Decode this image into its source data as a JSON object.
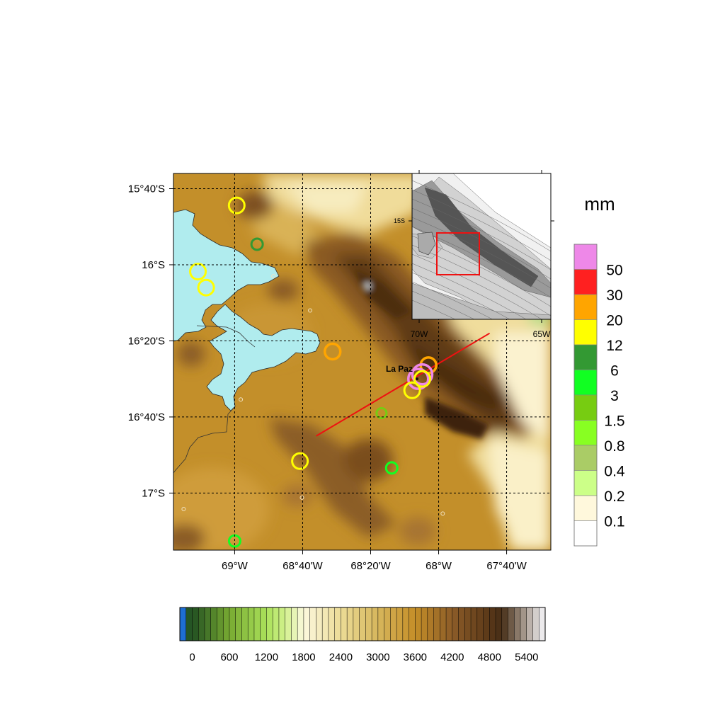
{
  "map": {
    "lat_labels": [
      "15°40'S",
      "16°S",
      "16°20'S",
      "16°40'S",
      "17°S"
    ],
    "lon_labels": [
      "69°W",
      "68°40'W",
      "68°20'W",
      "68°W",
      "67°40'W"
    ],
    "city": {
      "name": "La Paz",
      "lon": -68.12,
      "lat": -16.5
    },
    "transect": {
      "start": {
        "lon": -68.6,
        "lat": -16.75
      },
      "end": {
        "lon": -67.75,
        "lat": -16.3
      },
      "color": "#ee1111"
    },
    "lake_color": "#b0ecee",
    "extent": {
      "lon_min": -69.3,
      "lon_max": -67.45,
      "lat_min": -17.25,
      "lat_max": -15.6
    }
  },
  "stations": [
    {
      "lon": -68.99,
      "lat": -15.74,
      "mm": 12
    },
    {
      "lon": -68.89,
      "lat": -15.91,
      "mm": 6
    },
    {
      "lon": -69.18,
      "lat": -16.03,
      "mm": 12
    },
    {
      "lon": -69.14,
      "lat": -16.1,
      "mm": 12
    },
    {
      "lon": -68.52,
      "lat": -16.38,
      "mm": 20
    },
    {
      "lon": -68.05,
      "lat": -16.44,
      "mm": 20
    },
    {
      "lon": -68.08,
      "lat": -16.48,
      "mm": 50
    },
    {
      "lon": -68.1,
      "lat": -16.5,
      "mm": 50
    },
    {
      "lon": -68.08,
      "lat": -16.5,
      "mm": 12
    },
    {
      "lon": -68.13,
      "lat": -16.55,
      "mm": 12
    },
    {
      "lon": -68.28,
      "lat": -16.65,
      "mm": 1.5
    },
    {
      "lon": -68.23,
      "lat": -16.89,
      "mm": 3
    },
    {
      "lon": -68.68,
      "lat": -16.86,
      "mm": 12
    },
    {
      "lon": -69.0,
      "lat": -17.21,
      "mm": 3
    }
  ],
  "tiny_stations": [
    {
      "lon": -68.81,
      "lat": -16.05
    },
    {
      "lon": -68.63,
      "lat": -16.2
    },
    {
      "lon": -68.97,
      "lat": -16.59
    },
    {
      "lon": -69.25,
      "lat": -17.07
    },
    {
      "lon": -68.67,
      "lat": -17.02
    },
    {
      "lon": -67.98,
      "lat": -17.09
    }
  ],
  "inset": {
    "lat_labels": [
      "15S"
    ],
    "lon_labels": [
      "70W",
      "65W"
    ]
  },
  "precip_colorbar": {
    "unit": "mm",
    "labels": [
      "50",
      "30",
      "20",
      "12",
      "6",
      "3",
      "1.5",
      "0.8",
      "0.4",
      "0.2",
      "0.1"
    ],
    "colors": [
      "#ee88e8",
      "#ff2020",
      "#ffa500",
      "#ffff00",
      "#339933",
      "#11ff22",
      "#77cc11",
      "#88ff22",
      "#aacc66",
      "#ccff88",
      "#fff8dc",
      "#ffffff"
    ]
  },
  "elevation_colorbar": {
    "labels": [
      "0",
      "600",
      "1200",
      "1800",
      "2400",
      "3000",
      "3600",
      "4200",
      "4800",
      "5400"
    ],
    "min": -200,
    "max": 5700,
    "step": 100
  }
}
